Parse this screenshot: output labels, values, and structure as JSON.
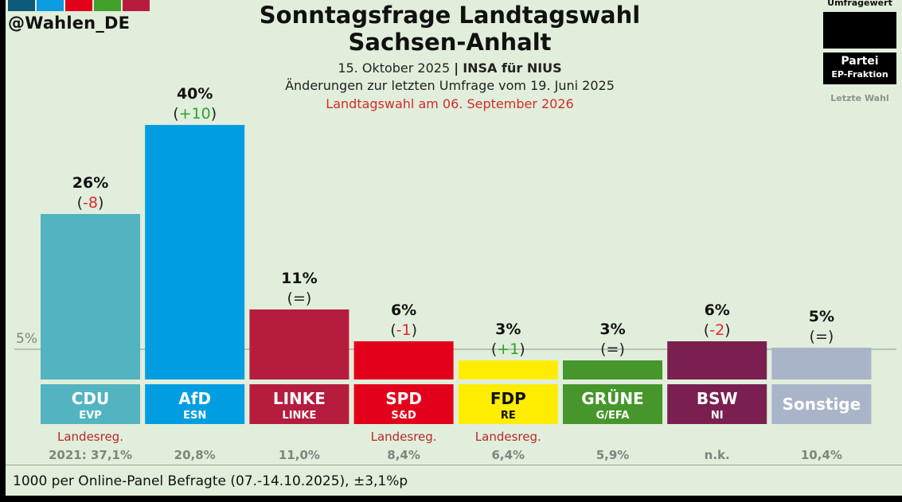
{
  "branding": {
    "handle": "@Wahlen_DE",
    "logo_colors": [
      "#0c5a7a",
      "#0a9be0",
      "#e3001b",
      "#43a02b",
      "#b81c3d"
    ]
  },
  "header": {
    "title_line1": "Sonntagsfrage Landtagswahl",
    "title_line2": "Sachsen-Anhalt",
    "date": "15. Oktober 2025",
    "separator": "|",
    "institute": "INSA für NIUS",
    "changes_note": "Änderungen zur letzten Umfrage vom 19. Juni 2025",
    "election_date": "Landtagswahl am 06. September 2026"
  },
  "legend": {
    "value_label": "Umfragewert",
    "party_label": "Partei",
    "fraction_label": "EP-Fraktion",
    "last_election_label": "Letzte Wahl"
  },
  "chart_data": {
    "type": "bar",
    "title": "Sonntagsfrage Landtagswahl Sachsen-Anhalt",
    "xlabel": "",
    "ylabel": "",
    "ylim": [
      0,
      40
    ],
    "threshold": {
      "value": 5,
      "label": "5%"
    },
    "categories": [
      "CDU",
      "AfD",
      "LINKE",
      "SPD",
      "FDP",
      "GRÜNE",
      "BSW",
      "Sonstige"
    ],
    "values": [
      26,
      40,
      11,
      6,
      3,
      3,
      6,
      5
    ],
    "value_labels": [
      "26%",
      "40%",
      "11%",
      "6%",
      "3%",
      "3%",
      "6%",
      "5%"
    ],
    "changes": [
      "-8",
      "+10",
      "=",
      "-1",
      "+1",
      "=",
      "-2",
      "="
    ],
    "ep_fractions": [
      "EVP",
      "ESN",
      "LINKE",
      "S&D",
      "RE",
      "G/EFA",
      "NI",
      ""
    ],
    "government": [
      true,
      false,
      false,
      true,
      true,
      false,
      false,
      false
    ],
    "government_label": "Landesreg.",
    "last_election": [
      "2021: 37,1%",
      "20,8%",
      "11,0%",
      "8,4%",
      "6,4%",
      "5,9%",
      "n.k.",
      "10,4%"
    ],
    "colors": [
      "#52b3c1",
      "#009ee0",
      "#b51c3d",
      "#e3001b",
      "#ffed00",
      "#46962b",
      "#7a1f4f",
      "#a9b4c8"
    ],
    "label_text_colors": [
      "#ffffff",
      "#ffffff",
      "#ffffff",
      "#ffffff",
      "#111111",
      "#ffffff",
      "#ffffff",
      "#ffffff"
    ],
    "change_colors": {
      "up": "#2aa42a",
      "down": "#e0282d",
      "same": "#222222"
    },
    "grid": false
  },
  "footer": {
    "note": "1000 per Online-Panel Befragte (07.-14.10.2025), ±3,1%p"
  }
}
